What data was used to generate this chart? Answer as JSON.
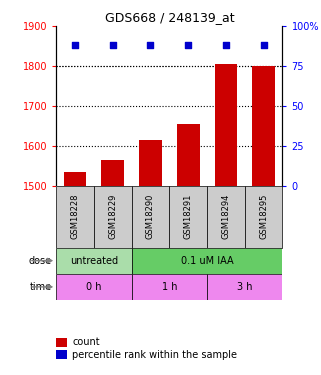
{
  "title": "GDS668 / 248139_at",
  "samples": [
    "GSM18228",
    "GSM18229",
    "GSM18290",
    "GSM18291",
    "GSM18294",
    "GSM18295"
  ],
  "bar_values": [
    1535,
    1565,
    1615,
    1655,
    1805,
    1800
  ],
  "scatter_values": [
    88,
    88,
    88,
    88,
    88,
    88
  ],
  "ylim_left": [
    1500,
    1900
  ],
  "ylim_right": [
    0,
    100
  ],
  "yticks_left": [
    1500,
    1600,
    1700,
    1800,
    1900
  ],
  "yticks_right": [
    0,
    25,
    50,
    75,
    100
  ],
  "bar_color": "#cc0000",
  "scatter_color": "#0000cc",
  "bar_width": 0.6,
  "dose_colors": [
    "#aaddaa",
    "#66cc66"
  ],
  "dose_texts": [
    "untreated",
    "0.1 uM IAA"
  ],
  "time_color": "#ee88ee",
  "time_texts": [
    "0 h",
    "1 h",
    "3 h"
  ],
  "dose_label": "dose",
  "time_label": "time",
  "legend_count": "count",
  "legend_percentile": "percentile rank within the sample",
  "sample_box_color": "#cccccc",
  "right_yaxis_label": "100%"
}
